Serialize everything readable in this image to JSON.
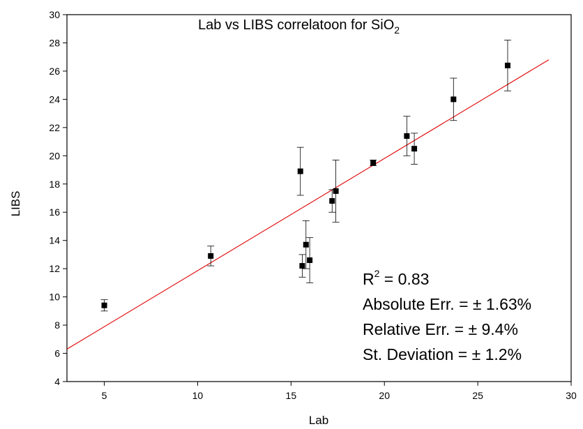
{
  "chart_data": {
    "type": "scatter",
    "title": "Lab vs LIBS correlatoon for SiO",
    "title_subscript": "2",
    "xlabel": "Lab",
    "ylabel": "LIBS",
    "xlim": [
      3,
      30
    ],
    "ylim": [
      4,
      30
    ],
    "xticks": [
      5,
      10,
      15,
      20,
      25,
      30
    ],
    "yticks": [
      4,
      6,
      8,
      10,
      12,
      14,
      16,
      18,
      20,
      22,
      24,
      26,
      28,
      30
    ],
    "grid": false,
    "points": [
      {
        "x": 5.0,
        "y": 9.4,
        "err": 0.4
      },
      {
        "x": 10.7,
        "y": 12.9,
        "err": 0.7
      },
      {
        "x": 15.5,
        "y": 18.9,
        "err": 1.7
      },
      {
        "x": 15.6,
        "y": 12.2,
        "err": 0.8
      },
      {
        "x": 15.8,
        "y": 13.7,
        "err": 1.7
      },
      {
        "x": 16.0,
        "y": 12.6,
        "err": 1.6
      },
      {
        "x": 17.2,
        "y": 16.8,
        "err": 0.8
      },
      {
        "x": 17.4,
        "y": 17.5,
        "err": 2.2
      },
      {
        "x": 19.4,
        "y": 19.5,
        "err": 0.2
      },
      {
        "x": 21.2,
        "y": 21.4,
        "err": 1.4
      },
      {
        "x": 21.6,
        "y": 20.5,
        "err": 1.1
      },
      {
        "x": 23.7,
        "y": 24.0,
        "err": 1.5
      },
      {
        "x": 26.6,
        "y": 26.4,
        "err": 1.8
      }
    ],
    "fit_line": {
      "x": [
        3,
        28.8
      ],
      "y": [
        6.3,
        26.8
      ],
      "color": "#e00000"
    },
    "marker_color": "#000000",
    "annotations": {
      "r2_prefix": "R",
      "r2_sup": "2",
      "r2_value": " = 0.83",
      "abs_err": "Absolute Err. = ± 1.63%",
      "rel_err": "Relative Err. = ± 9.4%",
      "st_dev": "St. Deviation = ± 1.2%"
    }
  }
}
